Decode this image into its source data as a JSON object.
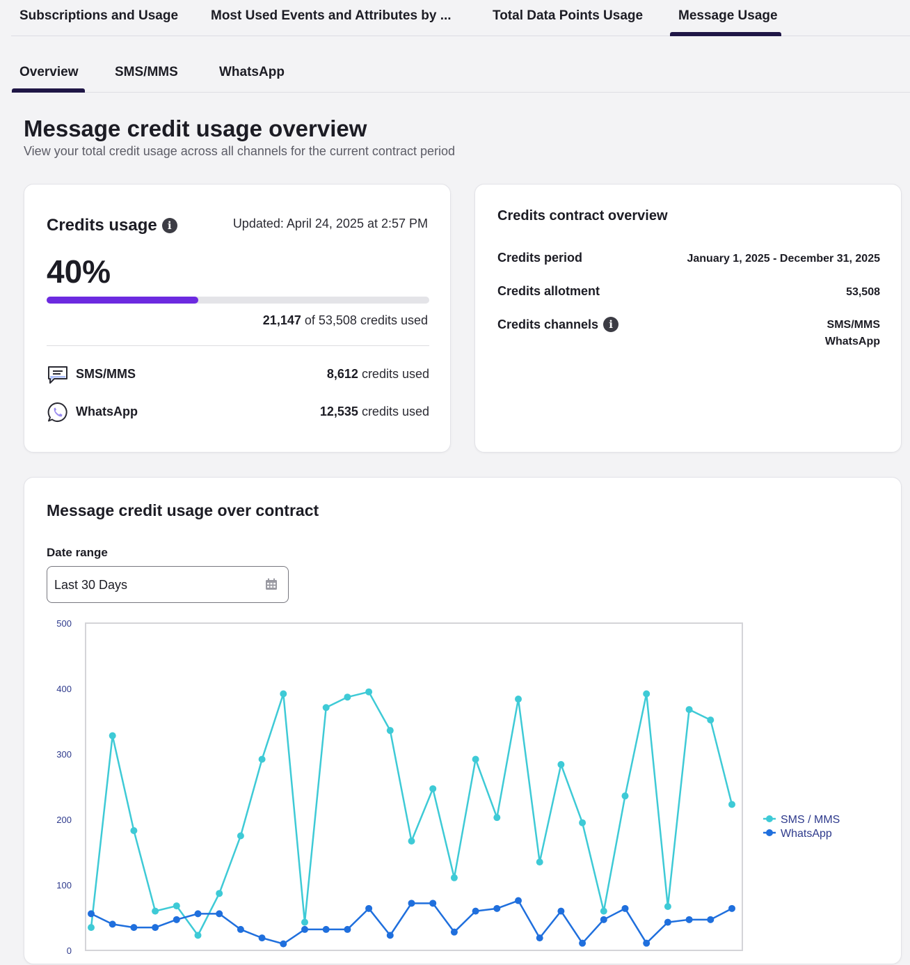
{
  "top_tabs": [
    {
      "label": "Subscriptions and Usage"
    },
    {
      "label": "Most Used Events and Attributes by ..."
    },
    {
      "label": "Total Data Points Usage"
    },
    {
      "label": "Message Usage",
      "active": true
    }
  ],
  "sub_tabs": [
    {
      "label": "Overview",
      "active": true
    },
    {
      "label": "SMS/MMS"
    },
    {
      "label": "WhatsApp"
    }
  ],
  "page": {
    "title": "Message credit usage overview",
    "subtitle": "View your total credit usage across all channels for the current contract period"
  },
  "credits_usage": {
    "title": "Credits usage",
    "info_icon": "i",
    "updated": "Updated: April 24, 2025 at 2:57 PM",
    "percent_label": "40%",
    "progress_fraction": 0.396,
    "used": "21,147",
    "total_text": "of 53,508 credits used",
    "channels": [
      {
        "icon": "chat-bubble-icon",
        "label": "SMS/MMS",
        "value": "8,612",
        "suffix": "credits used"
      },
      {
        "icon": "whatsapp-icon",
        "label": "WhatsApp",
        "value": "12,535",
        "suffix": "credits used"
      }
    ]
  },
  "contract": {
    "title": "Credits contract overview",
    "period_label": "Credits period",
    "period_value": "January 1, 2025 - December 31, 2025",
    "allotment_label": "Credits allotment",
    "allotment_value": "53,508",
    "channels_label": "Credits channels",
    "channels_info_icon": "i",
    "channels_values": [
      "SMS/MMS",
      "WhatsApp"
    ]
  },
  "usage_chart": {
    "title": "Message credit usage over contract",
    "date_range_label": "Date range",
    "date_range_value": "Last 30 Days"
  },
  "colors": {
    "accent": "#6c2ae0",
    "tab_indicator": "#1f1646",
    "sms_series": "#3ecad6",
    "whatsapp_series": "#1f6fdd",
    "axis_text": "#2e3a8c"
  },
  "chart_data": {
    "type": "line",
    "title": "",
    "xlabel": "",
    "ylabel": "",
    "ylim": [
      0,
      500
    ],
    "yticks": [
      0,
      100,
      200,
      300,
      400,
      500
    ],
    "grid": false,
    "legend": "right",
    "series": [
      {
        "name": "SMS / MMS",
        "color": "#3ecad6",
        "values": [
          35,
          328,
          183,
          60,
          68,
          23,
          87,
          175,
          292,
          392,
          43,
          371,
          387,
          395,
          336,
          167,
          247,
          111,
          292,
          203,
          384,
          135,
          284,
          195,
          60,
          236,
          392,
          67,
          368,
          352,
          223
        ]
      },
      {
        "name": "WhatsApp",
        "color": "#1f6fdd",
        "values": [
          56,
          40,
          35,
          35,
          47,
          56,
          56,
          32,
          19,
          10,
          32,
          32,
          32,
          64,
          23,
          72,
          72,
          28,
          60,
          64,
          76,
          19,
          60,
          11,
          47,
          64,
          11,
          43,
          47,
          47,
          64
        ]
      }
    ]
  }
}
